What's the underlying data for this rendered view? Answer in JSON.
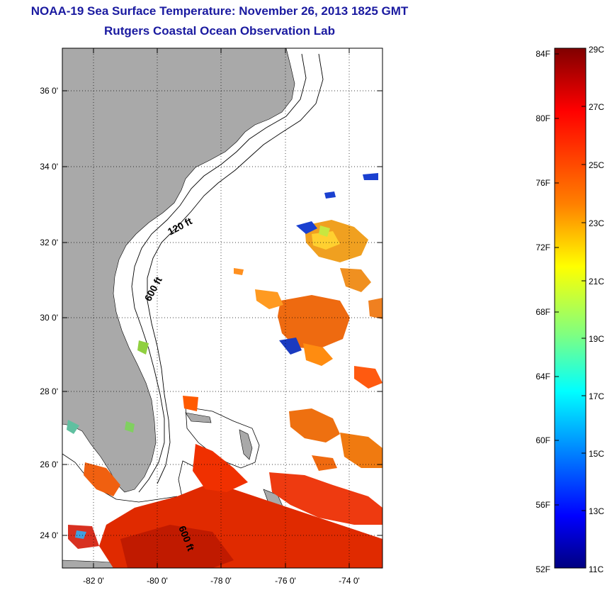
{
  "title": {
    "line1": "NOAA-19 Sea Surface Temperature:  November 26, 2013 1825 GMT",
    "line2": "Rutgers Coastal Ocean Observation Lab"
  },
  "map": {
    "lat_ticks": [
      "36 0'",
      "34 0'",
      "32 0'",
      "30 0'",
      "28 0'",
      "26 0'",
      "24 0'"
    ],
    "lon_ticks": [
      "-82 0'",
      "-80 0'",
      "-78 0'",
      "-76 0'",
      "-74 0'"
    ],
    "contour_labels": [
      "120 ft",
      "600 ft",
      "600 ft"
    ],
    "colors": {
      "land": "#a9a9a9",
      "ocean": "#ffffff",
      "grid": "#000000"
    }
  },
  "colorbar": {
    "fahrenheit_labels": [
      "84F",
      "80F",
      "76F",
      "72F",
      "68F",
      "64F",
      "60F",
      "56F",
      "52F"
    ],
    "celsius_labels": [
      "29C",
      "27C",
      "25C",
      "23C",
      "21C",
      "19C",
      "17C",
      "15C",
      "13C",
      "11C"
    ],
    "gradient": [
      "#800000",
      "#ff0000",
      "#ff8000",
      "#ffff00",
      "#80ff80",
      "#00ffff",
      "#0080ff",
      "#0000ff",
      "#000080"
    ]
  }
}
